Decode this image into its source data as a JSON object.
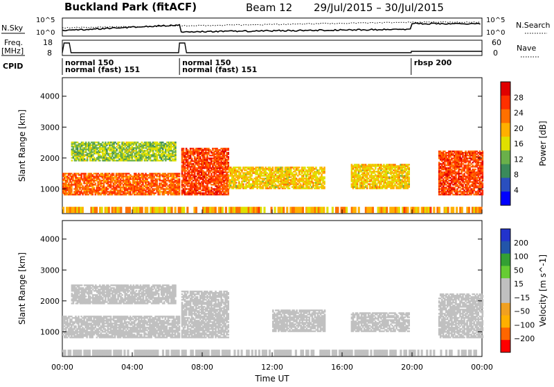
{
  "header": {
    "station": "Buckland Park (fitACF)",
    "beam": "Beam 12",
    "date_range": "29/Jul/2015 – 30/Jul/2015"
  },
  "noise_panel": {
    "left_label": "N.Sky",
    "right_label": "N.Search",
    "left_ticks": [
      "10^5",
      "10^0"
    ],
    "right_ticks": [
      "10^5",
      "10^0"
    ]
  },
  "freq_panel": {
    "label_line1": "Freq.",
    "label_line2": "[MHz]",
    "left_ticks": [
      "18",
      "8"
    ],
    "right_label": "Nave",
    "right_ticks": [
      "60",
      "0"
    ]
  },
  "cpid": {
    "label": "CPID",
    "segments": [
      {
        "start_h": 0.0,
        "end_h": 6.7,
        "labels": [
          "normal 150",
          "normal (fast) 151"
        ]
      },
      {
        "start_h": 6.7,
        "end_h": 19.95,
        "labels": [
          "normal 150",
          "normal (fast) 151"
        ]
      },
      {
        "start_h": 19.95,
        "end_h": 24.0,
        "labels": [
          "rbsp 200"
        ]
      }
    ]
  },
  "colors": {
    "power_scale": [
      "#0000ff",
      "#2a4fbf",
      "#3a8a5a",
      "#6ab04a",
      "#e0e000",
      "#ffb000",
      "#ff7000",
      "#ff3000",
      "#e00000"
    ],
    "velocity_scale": [
      "#ff0000",
      "#ff6600",
      "#ffb000",
      "#f0a020",
      "#c0c0c0",
      "#c0c0c0",
      "#66cc33",
      "#33a033",
      "#2255aa",
      "#2233cc"
    ]
  },
  "chart_data": [
    {
      "type": "heatmap",
      "name": "power",
      "x_axis": {
        "range_h": [
          0,
          24
        ]
      },
      "y_axis": {
        "label": "Slant Range [km]",
        "range": [
          200,
          4600
        ],
        "ticks": [
          1000,
          2000,
          3000,
          4000
        ]
      },
      "colorbar": {
        "label": "Power [dB]",
        "ticks": [
          "4",
          "8",
          "12",
          "16",
          "20",
          "24",
          "28"
        ],
        "range": [
          0,
          32
        ]
      },
      "echo_regions": [
        {
          "t_start": 0.0,
          "t_end": 6.7,
          "r_min": 800,
          "r_max": 1500,
          "value": 24
        },
        {
          "t_start": 0.5,
          "t_end": 6.5,
          "r_min": 1900,
          "r_max": 2500,
          "value": 14
        },
        {
          "t_start": 6.8,
          "t_end": 9.5,
          "r_min": 800,
          "r_max": 2300,
          "value": 26
        },
        {
          "t_start": 9.5,
          "t_end": 15.0,
          "r_min": 1000,
          "r_max": 1700,
          "value": 18
        },
        {
          "t_start": 16.5,
          "t_end": 19.8,
          "r_min": 1000,
          "r_max": 1800,
          "value": 18
        },
        {
          "t_start": 21.5,
          "t_end": 24.0,
          "r_min": 800,
          "r_max": 2200,
          "value": 26
        }
      ]
    },
    {
      "type": "heatmap",
      "name": "velocity",
      "x_axis": {
        "label": "Time UT",
        "ticks": [
          "00:00",
          "04:00",
          "08:00",
          "12:00",
          "16:00",
          "20:00",
          "00:00"
        ],
        "range_h": [
          0,
          24
        ]
      },
      "y_axis": {
        "label": "Slant Range [km]",
        "range": [
          200,
          4600
        ],
        "ticks": [
          1000,
          2000,
          3000,
          4000
        ]
      },
      "colorbar": {
        "label": "Velocity [m s^-1]",
        "ticks": [
          "200",
          "100",
          "50",
          "15",
          "−15",
          "−50",
          "−100",
          "−200"
        ],
        "range": [
          -250,
          250
        ]
      },
      "echo_regions": [
        {
          "t_start": 0.0,
          "t_end": 6.7,
          "r_min": 800,
          "r_max": 1500,
          "value": 0
        },
        {
          "t_start": 0.5,
          "t_end": 6.5,
          "r_min": 1900,
          "r_max": 2500,
          "value": -20
        },
        {
          "t_start": 6.8,
          "t_end": 9.5,
          "r_min": 800,
          "r_max": 2300,
          "value": -30
        },
        {
          "t_start": 12.0,
          "t_end": 15.0,
          "r_min": 1000,
          "r_max": 1700,
          "value": 40
        },
        {
          "t_start": 16.5,
          "t_end": 19.8,
          "r_min": 1000,
          "r_max": 1600,
          "value": 40
        },
        {
          "t_start": 21.5,
          "t_end": 24.0,
          "r_min": 800,
          "r_max": 2200,
          "value": 0
        }
      ]
    }
  ]
}
